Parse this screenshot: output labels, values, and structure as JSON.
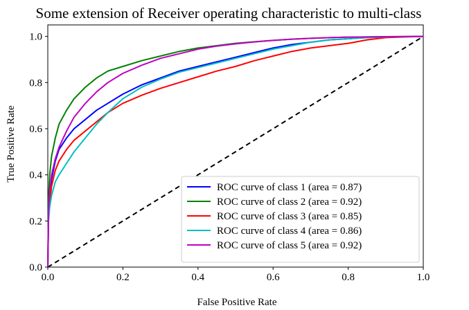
{
  "chart_data": {
    "type": "line",
    "title": "Some extension of Receiver operating characteristic to multi-class",
    "xlabel": "False Positive Rate",
    "ylabel": "True Positive Rate",
    "xlim": [
      0.0,
      1.0
    ],
    "ylim": [
      0.0,
      1.05
    ],
    "xticks": [
      "0.0",
      "0.2",
      "0.4",
      "0.6",
      "0.8",
      "1.0"
    ],
    "yticks": [
      "0.0",
      "0.2",
      "0.4",
      "0.6",
      "0.8",
      "1.0"
    ],
    "grid": false,
    "legend_position": "lower-right",
    "series": [
      {
        "name": "ROC curve of class 1 (area = 0.87)",
        "color": "#0000ff",
        "points": [
          [
            0,
            0
          ],
          [
            0.002,
            0.22
          ],
          [
            0.005,
            0.3
          ],
          [
            0.01,
            0.38
          ],
          [
            0.02,
            0.46
          ],
          [
            0.03,
            0.51
          ],
          [
            0.05,
            0.56
          ],
          [
            0.07,
            0.6
          ],
          [
            0.1,
            0.64
          ],
          [
            0.13,
            0.68
          ],
          [
            0.16,
            0.71
          ],
          [
            0.2,
            0.75
          ],
          [
            0.25,
            0.79
          ],
          [
            0.3,
            0.82
          ],
          [
            0.35,
            0.85
          ],
          [
            0.4,
            0.87
          ],
          [
            0.45,
            0.89
          ],
          [
            0.5,
            0.91
          ],
          [
            0.55,
            0.93
          ],
          [
            0.6,
            0.95
          ],
          [
            0.65,
            0.965
          ],
          [
            0.7,
            0.975
          ],
          [
            0.75,
            0.985
          ],
          [
            0.8,
            0.99
          ],
          [
            0.85,
            0.995
          ],
          [
            0.9,
            0.998
          ],
          [
            1.0,
            1.0
          ]
        ]
      },
      {
        "name": "ROC curve of class 2 (area = 0.92)",
        "color": "#008000",
        "points": [
          [
            0,
            0
          ],
          [
            0.002,
            0.3
          ],
          [
            0.005,
            0.4
          ],
          [
            0.01,
            0.48
          ],
          [
            0.02,
            0.56
          ],
          [
            0.03,
            0.62
          ],
          [
            0.05,
            0.68
          ],
          [
            0.07,
            0.73
          ],
          [
            0.1,
            0.78
          ],
          [
            0.13,
            0.82
          ],
          [
            0.16,
            0.85
          ],
          [
            0.2,
            0.87
          ],
          [
            0.25,
            0.895
          ],
          [
            0.3,
            0.915
          ],
          [
            0.35,
            0.935
          ],
          [
            0.4,
            0.95
          ],
          [
            0.45,
            0.96
          ],
          [
            0.5,
            0.97
          ],
          [
            0.55,
            0.977
          ],
          [
            0.6,
            0.983
          ],
          [
            0.65,
            0.988
          ],
          [
            0.7,
            0.992
          ],
          [
            0.75,
            0.995
          ],
          [
            0.8,
            0.997
          ],
          [
            0.9,
            0.999
          ],
          [
            1.0,
            1.0
          ]
        ]
      },
      {
        "name": "ROC curve of class 3 (area = 0.85)",
        "color": "#ff0000",
        "points": [
          [
            0,
            0
          ],
          [
            0.002,
            0.22
          ],
          [
            0.005,
            0.28
          ],
          [
            0.01,
            0.35
          ],
          [
            0.02,
            0.42
          ],
          [
            0.03,
            0.46
          ],
          [
            0.05,
            0.51
          ],
          [
            0.07,
            0.55
          ],
          [
            0.1,
            0.59
          ],
          [
            0.13,
            0.63
          ],
          [
            0.16,
            0.67
          ],
          [
            0.2,
            0.71
          ],
          [
            0.25,
            0.745
          ],
          [
            0.3,
            0.775
          ],
          [
            0.35,
            0.8
          ],
          [
            0.4,
            0.825
          ],
          [
            0.45,
            0.85
          ],
          [
            0.5,
            0.87
          ],
          [
            0.55,
            0.895
          ],
          [
            0.6,
            0.915
          ],
          [
            0.65,
            0.935
          ],
          [
            0.7,
            0.95
          ],
          [
            0.75,
            0.96
          ],
          [
            0.8,
            0.97
          ],
          [
            0.85,
            0.985
          ],
          [
            0.9,
            0.995
          ],
          [
            0.95,
            0.998
          ],
          [
            1.0,
            1.0
          ]
        ]
      },
      {
        "name": "ROC curve of class 4 (area = 0.86)",
        "color": "#00bfbf",
        "points": [
          [
            0,
            0
          ],
          [
            0.002,
            0.2
          ],
          [
            0.005,
            0.26
          ],
          [
            0.01,
            0.31
          ],
          [
            0.02,
            0.37
          ],
          [
            0.03,
            0.4
          ],
          [
            0.05,
            0.45
          ],
          [
            0.07,
            0.5
          ],
          [
            0.1,
            0.56
          ],
          [
            0.13,
            0.62
          ],
          [
            0.16,
            0.67
          ],
          [
            0.2,
            0.73
          ],
          [
            0.25,
            0.78
          ],
          [
            0.3,
            0.815
          ],
          [
            0.35,
            0.845
          ],
          [
            0.4,
            0.865
          ],
          [
            0.45,
            0.885
          ],
          [
            0.5,
            0.905
          ],
          [
            0.55,
            0.925
          ],
          [
            0.6,
            0.945
          ],
          [
            0.65,
            0.96
          ],
          [
            0.7,
            0.975
          ],
          [
            0.75,
            0.985
          ],
          [
            0.8,
            0.99
          ],
          [
            0.85,
            0.995
          ],
          [
            0.9,
            0.998
          ],
          [
            1.0,
            1.0
          ]
        ]
      },
      {
        "name": "ROC curve of class 5 (area = 0.92)",
        "color": "#bf00bf",
        "points": [
          [
            0,
            0
          ],
          [
            0.002,
            0.25
          ],
          [
            0.005,
            0.33
          ],
          [
            0.01,
            0.4
          ],
          [
            0.02,
            0.47
          ],
          [
            0.03,
            0.52
          ],
          [
            0.05,
            0.59
          ],
          [
            0.07,
            0.65
          ],
          [
            0.1,
            0.71
          ],
          [
            0.13,
            0.76
          ],
          [
            0.16,
            0.8
          ],
          [
            0.2,
            0.84
          ],
          [
            0.25,
            0.875
          ],
          [
            0.3,
            0.905
          ],
          [
            0.35,
            0.925
          ],
          [
            0.4,
            0.945
          ],
          [
            0.45,
            0.958
          ],
          [
            0.5,
            0.968
          ],
          [
            0.55,
            0.976
          ],
          [
            0.6,
            0.983
          ],
          [
            0.65,
            0.988
          ],
          [
            0.7,
            0.992
          ],
          [
            0.75,
            0.995
          ],
          [
            0.8,
            0.997
          ],
          [
            0.9,
            0.999
          ],
          [
            1.0,
            1.0
          ]
        ]
      }
    ],
    "reference_line": {
      "style": "dashed",
      "color": "#000000",
      "points": [
        [
          0,
          0
        ],
        [
          1,
          1
        ]
      ]
    }
  }
}
